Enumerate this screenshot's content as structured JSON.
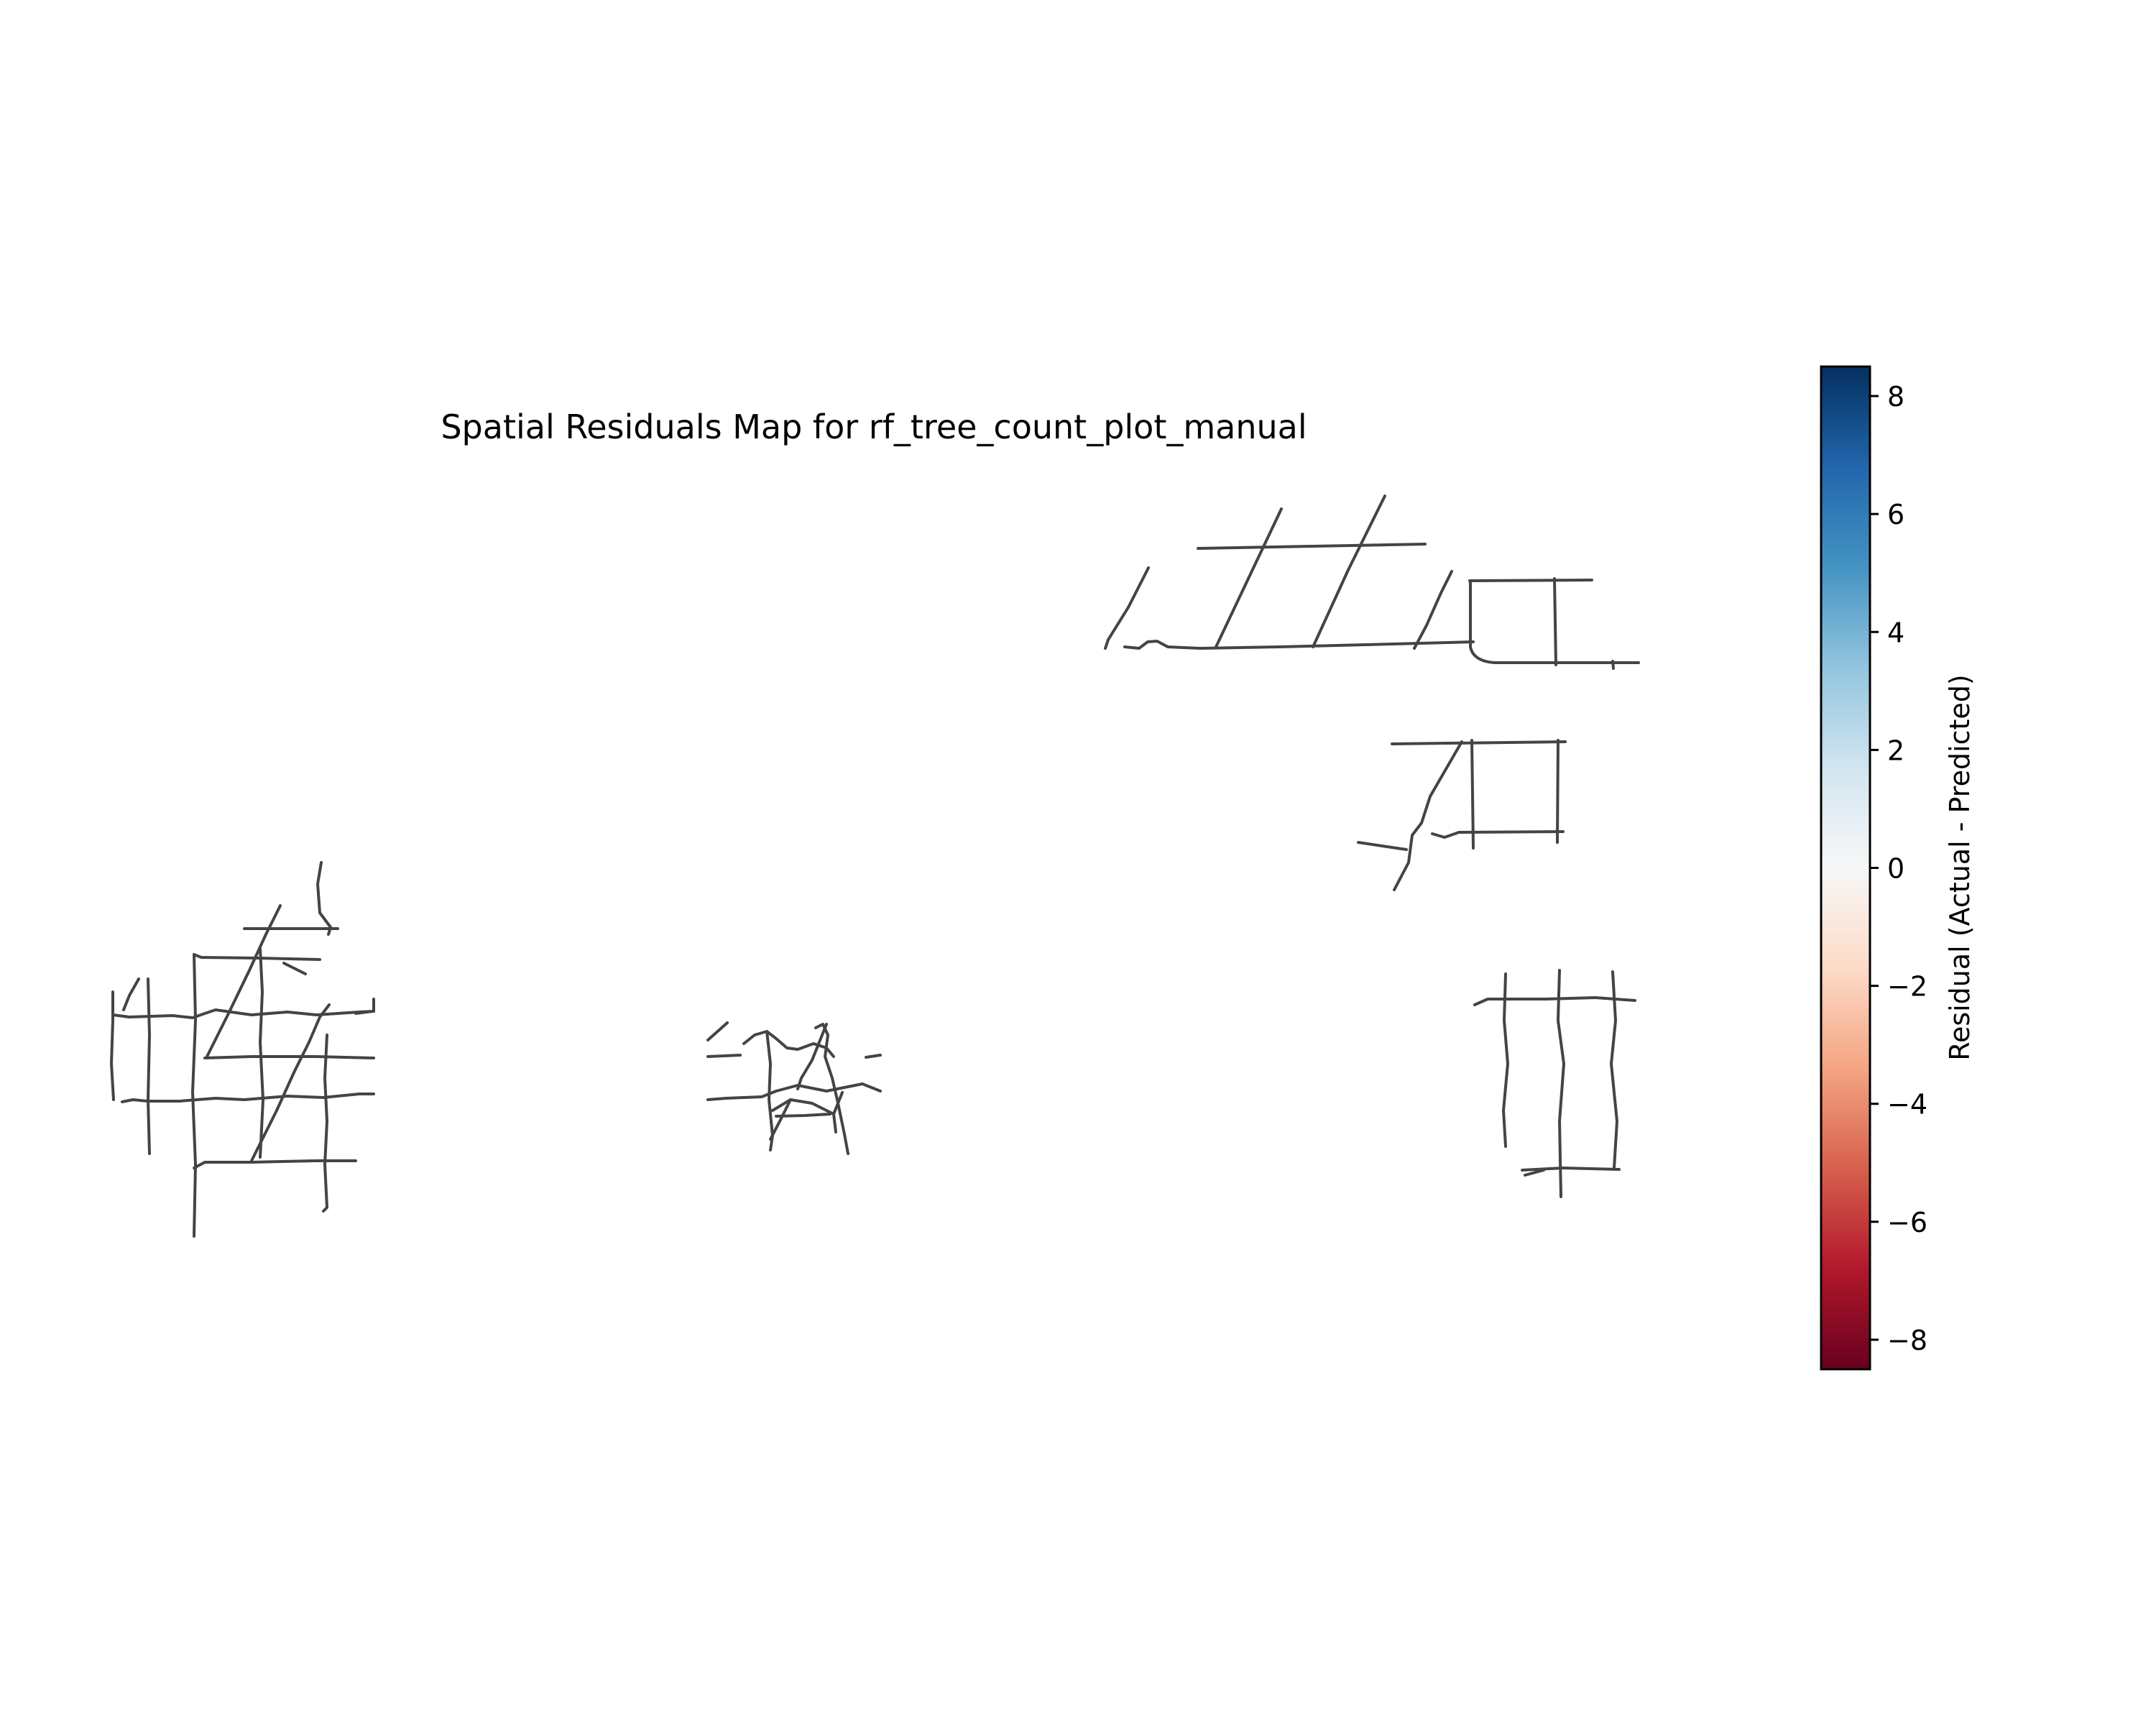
{
  "title": "Spatial Residuals Map for rf_tree_count_plot_manual",
  "colorbar": {
    "label": "Residual (Actual - Predicted)",
    "colormap": "RdBu",
    "range": [
      -8.5,
      8.5
    ],
    "ticks": [
      {
        "value": 8,
        "label": "8"
      },
      {
        "value": 6,
        "label": "6"
      },
      {
        "value": 4,
        "label": "4"
      },
      {
        "value": 2,
        "label": "2"
      },
      {
        "value": 0,
        "label": "0"
      },
      {
        "value": -2,
        "label": "−2"
      },
      {
        "value": -4,
        "label": "−4"
      },
      {
        "value": -6,
        "label": "−6"
      },
      {
        "value": -8,
        "label": "−8"
      }
    ],
    "gradient_colors": [
      "#67001f",
      "#b2182b",
      "#d6604d",
      "#f4a582",
      "#fddbc7",
      "#f7f7f7",
      "#d1e5f0",
      "#92c5de",
      "#4393c3",
      "#2166ac",
      "#053061"
    ]
  },
  "road_color": "#444444"
}
